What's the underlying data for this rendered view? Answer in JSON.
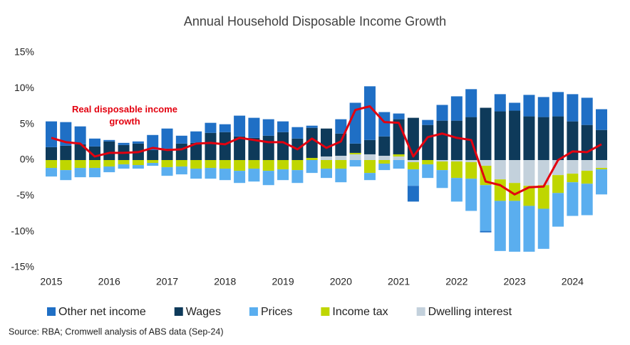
{
  "chart_data": {
    "type": "bar",
    "title": "Annual Household Disposable Income Growth",
    "source": "Source: RBA; Cromwell analysis of ABS data (Sep-24)",
    "categories": [
      "2015",
      null,
      null,
      null,
      "2016",
      null,
      null,
      null,
      "2017",
      null,
      null,
      null,
      "2018",
      null,
      null,
      null,
      "2019",
      null,
      null,
      null,
      "2020",
      null,
      null,
      null,
      "2021",
      null,
      null,
      null,
      "2022",
      null,
      null,
      null,
      "2023",
      null,
      null,
      null,
      "2024",
      null,
      null
    ],
    "series": [
      {
        "name": "Other net income",
        "color": "#1f6fc5",
        "values": [
          3.6,
          3.3,
          2.5,
          1.1,
          0.2,
          0.3,
          0.3,
          2.1,
          2.8,
          1.1,
          1.6,
          1.4,
          1.1,
          2.9,
          2.8,
          2.3,
          1.5,
          1.6,
          0.3,
          0,
          2.0,
          5.7,
          7.5,
          3.4,
          0.8,
          -2.2,
          0.7,
          2.2,
          3.4,
          3.9,
          -0.2,
          2.4,
          1.1,
          3.0,
          2.8,
          3.4,
          3.8,
          3.8,
          2.9
        ]
      },
      {
        "name": "Wages",
        "color": "#0e3a5a",
        "values": [
          1.8,
          2.0,
          2.2,
          1.9,
          2.6,
          2.1,
          2.3,
          1.4,
          1.6,
          2.3,
          2.4,
          3.8,
          3.9,
          3.3,
          3.1,
          3.4,
          3.9,
          3.0,
          4.2,
          3.9,
          3.1,
          1.3,
          2.0,
          2.7,
          4.9,
          5.9,
          4.9,
          5.5,
          5.5,
          6.0,
          7.3,
          6.8,
          6.9,
          6.1,
          6.0,
          6.1,
          5.4,
          4.9,
          4.2
        ]
      },
      {
        "name": "Prices",
        "color": "#5aaeef",
        "values": [
          -1.2,
          -1.4,
          -1.3,
          -1.3,
          -0.8,
          -0.6,
          -0.5,
          -0.4,
          -1.2,
          -1.1,
          -1.4,
          -1.5,
          -1.6,
          -1.7,
          -1.8,
          -2.0,
          -1.5,
          -1.8,
          -1.8,
          -1.3,
          -1.9,
          -0.9,
          -1.0,
          -0.9,
          -1.2,
          -2.3,
          -1.9,
          -2.5,
          -3.3,
          -4.5,
          -6.4,
          -7.0,
          -7.1,
          -6.4,
          -5.6,
          -4.7,
          -4.7,
          -4.4,
          -3.5
        ]
      },
      {
        "name": "Income tax",
        "color": "#bfd600",
        "values": [
          -1.1,
          -1.4,
          -1.1,
          -1.1,
          -0.9,
          -0.6,
          -0.7,
          -0.4,
          -1.0,
          -0.9,
          -1.2,
          -1.1,
          -1.2,
          -1.5,
          -1.2,
          -1.5,
          -1.3,
          -1.4,
          0.3,
          -1.2,
          -1.2,
          0.2,
          -1.8,
          -0.5,
          0.3,
          -1.0,
          -0.6,
          -1.2,
          -2.3,
          -2.3,
          -2.7,
          -3.0,
          -2.5,
          -2.8,
          -3.3,
          -2.5,
          -1.2,
          -1.8,
          -0.2
        ]
      },
      {
        "name": "Dwelling interest",
        "color": "#c3d1dc",
        "values": [
          0,
          0,
          0,
          0,
          0,
          0,
          0,
          0,
          0,
          0,
          0,
          0,
          0,
          0,
          0,
          0,
          0,
          0,
          0,
          0.5,
          0.6,
          0.8,
          0.8,
          0.6,
          0.5,
          -0.3,
          0,
          -0.2,
          -0.2,
          -0.3,
          -0.8,
          -2.7,
          -3.2,
          -3.6,
          -3.5,
          -2.1,
          -1.9,
          -1.5,
          -1.1
        ]
      },
      {
        "name": "Real disposable income growth",
        "type": "line",
        "color": "#e3000f",
        "values": [
          3.1,
          2.5,
          2.3,
          0.5,
          1.0,
          1.0,
          1.1,
          1.7,
          1.4,
          1.5,
          2.3,
          2.4,
          2.2,
          3.1,
          2.8,
          2.5,
          2.5,
          1.5,
          3.0,
          1.7,
          2.6,
          7.0,
          7.5,
          5.3,
          5.2,
          0.5,
          3.2,
          3.7,
          3.1,
          2.8,
          -3.0,
          -3.5,
          -4.8,
          -3.8,
          -3.7,
          0.0,
          1.2,
          1.1,
          2.2
        ]
      }
    ],
    "ylim": [
      -15,
      15
    ],
    "yticks": [
      {
        "value": -15,
        "label": "-15%"
      },
      {
        "value": -10,
        "label": "-10%"
      },
      {
        "value": -5,
        "label": "-5%"
      },
      {
        "value": 0,
        "label": "0%"
      },
      {
        "value": 5,
        "label": "5%"
      },
      {
        "value": 10,
        "label": "10%"
      },
      {
        "value": 15,
        "label": "15%"
      }
    ],
    "grid": false
  }
}
